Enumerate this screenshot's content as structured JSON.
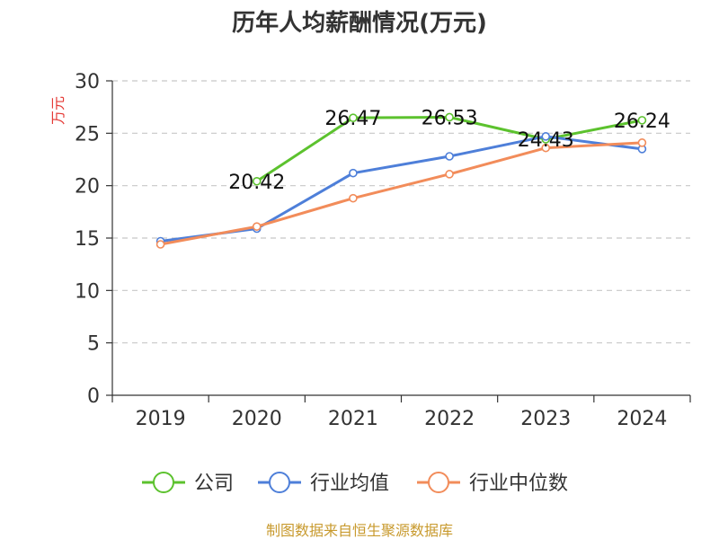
{
  "chart_data": {
    "type": "line",
    "title": "历年人均薪酬情况(万元)",
    "ylabel": "万元",
    "xlabel": "",
    "ylim": [
      0,
      30
    ],
    "yticks": [
      0,
      5,
      10,
      15,
      20,
      25,
      30
    ],
    "grid": true,
    "legend_position": "bottom",
    "categories": [
      "2019",
      "2020",
      "2021",
      "2022",
      "2023",
      "2024"
    ],
    "series": [
      {
        "name": "公司",
        "color": "#5cc22e",
        "values": [
          null,
          20.42,
          26.47,
          26.53,
          24.43,
          26.24
        ],
        "labels": [
          "",
          "20.42",
          "26.47",
          "26.53",
          "24.43",
          "26.24"
        ]
      },
      {
        "name": "行业均值",
        "color": "#4e7fd9",
        "values": [
          14.7,
          15.9,
          21.2,
          22.8,
          24.7,
          23.5
        ]
      },
      {
        "name": "行业中位数",
        "color": "#f28c5a",
        "values": [
          14.4,
          16.1,
          18.8,
          21.1,
          23.6,
          24.1
        ]
      }
    ]
  },
  "footer": {
    "source": "制图数据来自恒生聚源数据库"
  }
}
